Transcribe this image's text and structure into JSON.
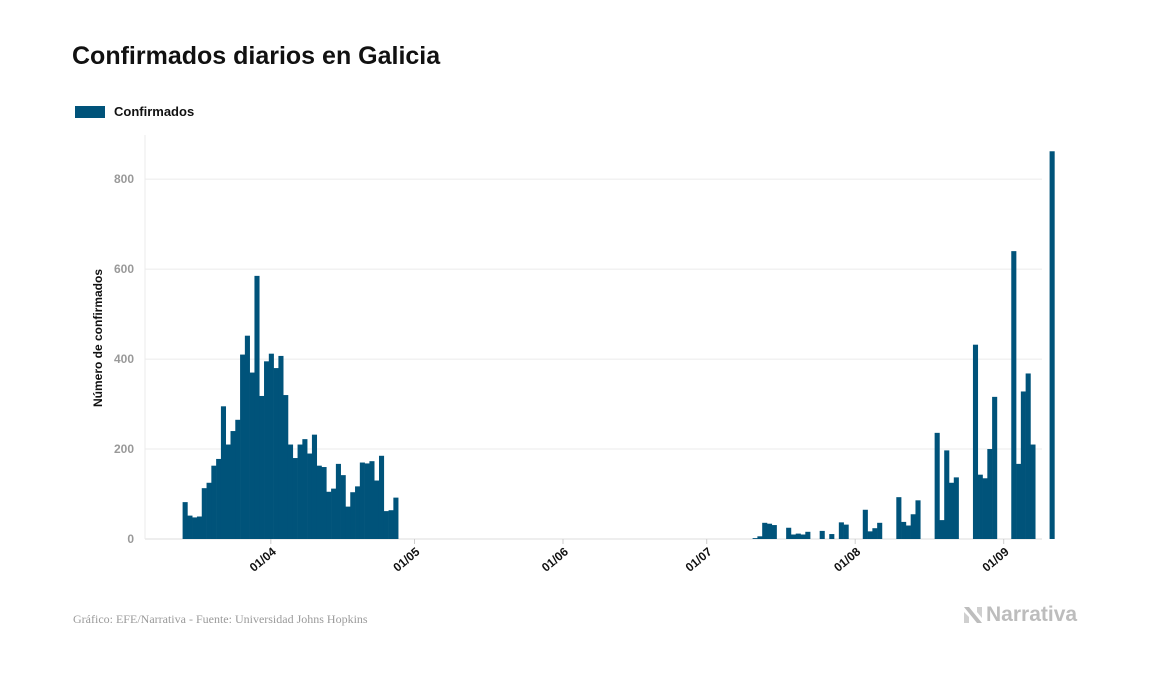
{
  "title": "Confirmados diarios en Galicia",
  "legend": {
    "label": "Confirmados"
  },
  "footer": {
    "source": "Gráfico: EFE/Narrativa - Fuente: Universidad Johns Hopkins",
    "brand": "Narrativa"
  },
  "colors": {
    "bar": "#00537a",
    "grid": "#ebebeb",
    "axis_text": "#999999",
    "brand": "#bdbdbd"
  },
  "chart_data": {
    "type": "bar",
    "title": "Confirmados diarios en Galicia",
    "xlabel": "",
    "ylabel": "Número de confirmados",
    "x_start": "2020-03-14",
    "ylim": [
      0,
      900
    ],
    "yticks": [
      0,
      200,
      400,
      600,
      800
    ],
    "xticks": [
      {
        "date": "2020-04-01",
        "label": "01/04"
      },
      {
        "date": "2020-05-01",
        "label": "01/05"
      },
      {
        "date": "2020-06-01",
        "label": "01/06"
      },
      {
        "date": "2020-07-01",
        "label": "01/07"
      },
      {
        "date": "2020-08-01",
        "label": "01/08"
      },
      {
        "date": "2020-09-01",
        "label": "01/09"
      }
    ],
    "grid": true,
    "legend": "top-left",
    "series": [
      {
        "name": "Confirmados",
        "values": [
          82,
          52,
          48,
          50,
          113,
          125,
          163,
          178,
          295,
          210,
          240,
          265,
          410,
          452,
          370,
          585,
          318,
          395,
          412,
          380,
          407,
          320,
          210,
          180,
          210,
          222,
          190,
          232,
          163,
          160,
          105,
          112,
          167,
          142,
          72,
          104,
          117,
          170,
          168,
          173,
          130,
          185,
          62,
          64,
          92,
          0,
          0,
          0,
          0,
          0,
          0,
          0,
          0,
          0,
          0,
          0,
          0,
          0,
          0,
          0,
          0,
          0,
          0,
          0,
          0,
          0,
          0,
          0,
          0,
          0,
          0,
          0,
          0,
          0,
          0,
          0,
          0,
          0,
          0,
          0,
          0,
          0,
          0,
          0,
          0,
          0,
          0,
          0,
          0,
          0,
          0,
          0,
          0,
          0,
          0,
          0,
          0,
          0,
          0,
          0,
          0,
          0,
          0,
          0,
          0,
          0,
          0,
          0,
          0,
          0,
          0,
          0,
          0,
          0,
          0,
          0,
          0,
          0,
          0,
          2,
          6,
          36,
          34,
          31,
          0,
          0,
          25,
          10,
          12,
          10,
          16,
          0,
          0,
          18,
          0,
          11,
          0,
          37,
          32,
          0,
          0,
          0,
          65,
          17,
          24,
          36,
          0,
          0,
          0,
          93,
          38,
          30,
          55,
          86,
          0,
          0,
          0,
          236,
          42,
          197,
          125,
          137,
          0,
          0,
          0,
          432,
          143,
          135,
          200,
          316,
          0,
          0,
          0,
          640,
          167,
          328,
          368,
          210,
          0,
          0,
          0,
          862
        ]
      }
    ]
  }
}
